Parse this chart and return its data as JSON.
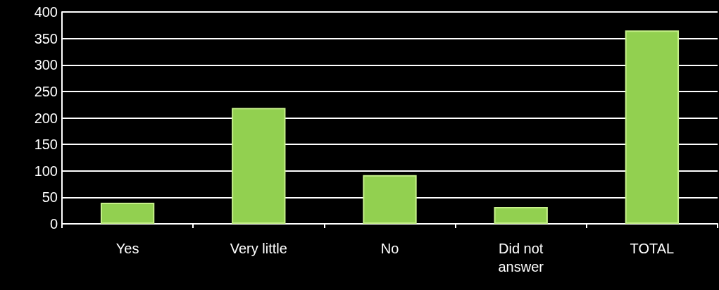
{
  "chart_data": {
    "type": "bar",
    "categories": [
      "Yes",
      "Very little",
      "No",
      "Did not\nanswer",
      "TOTAL"
    ],
    "values": [
      40,
      219,
      92,
      32,
      365
    ],
    "color": "#92d050",
    "ylim": [
      0,
      400
    ],
    "yticks": [
      0,
      50,
      100,
      150,
      200,
      250,
      300,
      350,
      400
    ],
    "grid": "y"
  }
}
